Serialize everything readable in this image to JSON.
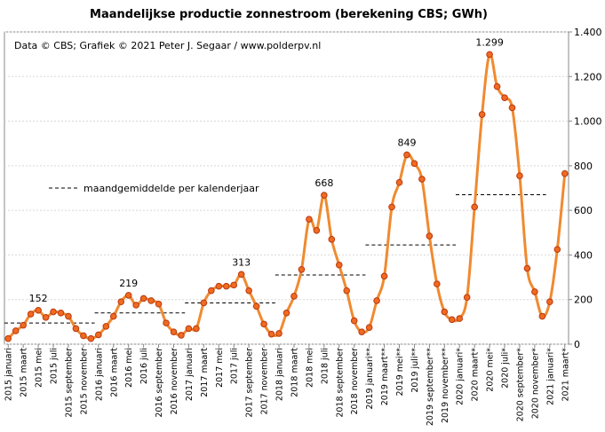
{
  "chart_data": {
    "type": "line",
    "title": "Maandelijkse productie zonnestroom (berekening CBS; GWh)",
    "annotation": "Data © CBS; Grafiek © 2021 Peter J. Segaar / www.polderpv.nl",
    "categories": [
      "2015 januari",
      null,
      "2015 maart",
      null,
      "2015 mei",
      null,
      "2015 juli",
      null,
      "2015 september",
      null,
      "2015 november",
      null,
      "2016 januari",
      null,
      "2016 maart",
      null,
      "2016 mei",
      null,
      "2016 juli",
      null,
      "2016 september",
      null,
      "2016 november",
      null,
      "2017 januari",
      null,
      "2017 maart",
      null,
      "2017 mei",
      null,
      "2017 juli",
      null,
      "2017 september",
      null,
      "2017 november",
      null,
      "2018 januari",
      null,
      "2018 maart",
      null,
      "2018 mei",
      null,
      "2018 juli",
      null,
      "2018 september",
      null,
      "2018 november",
      null,
      "2019 januari**",
      null,
      "2019 maart**",
      null,
      "2019 mei**",
      null,
      "2019 juli**",
      null,
      "2019 september**",
      null,
      "2019 november**",
      null,
      "2020 januari*",
      null,
      "2020 maart*",
      null,
      "2020 mei*",
      null,
      "2020 juli*",
      null,
      "2020 september*",
      null,
      "2020 november*",
      null,
      "2021 januari*",
      null,
      "2021 maart*"
    ],
    "series": [
      {
        "name": "Maandelijkse productie",
        "color": "#f08a30",
        "marker_color": "#f06a20",
        "values": [
          25,
          60,
          85,
          135,
          152,
          120,
          145,
          140,
          125,
          70,
          38,
          25,
          42,
          80,
          125,
          190,
          219,
          175,
          205,
          195,
          180,
          95,
          55,
          40,
          70,
          70,
          185,
          240,
          260,
          260,
          265,
          313,
          240,
          170,
          90,
          45,
          48,
          140,
          215,
          335,
          560,
          510,
          668,
          470,
          355,
          240,
          105,
          55,
          75,
          195,
          305,
          615,
          725,
          849,
          810,
          740,
          485,
          270,
          145,
          110,
          115,
          210,
          615,
          1030,
          1299,
          1155,
          1105,
          1060,
          755,
          340,
          235,
          125,
          190,
          425,
          765
        ],
        "value_labels": [
          null,
          null,
          null,
          null,
          "152",
          null,
          null,
          null,
          null,
          null,
          null,
          null,
          null,
          null,
          null,
          null,
          "219",
          null,
          null,
          null,
          null,
          null,
          null,
          null,
          null,
          null,
          null,
          null,
          null,
          null,
          null,
          "313",
          null,
          null,
          null,
          null,
          null,
          null,
          null,
          null,
          null,
          null,
          "668",
          null,
          null,
          null,
          null,
          null,
          null,
          null,
          null,
          null,
          null,
          "849",
          null,
          null,
          null,
          null,
          null,
          null,
          null,
          null,
          null,
          null,
          "1.299",
          null,
          null,
          null,
          null,
          null,
          null,
          null,
          null,
          null,
          null
        ]
      }
    ],
    "averages": {
      "name": "maandgemiddelde per kalenderjaar",
      "color": "#000000",
      "values": [
        95,
        140,
        185,
        310,
        445,
        670
      ]
    },
    "ylim": [
      0,
      1400
    ],
    "yticks": [
      0,
      200,
      400,
      600,
      800,
      {
        "value": 1000,
        "label": "1.000"
      },
      {
        "value": 1200,
        "label": "1.200"
      },
      {
        "value": 1400,
        "label": "1.400"
      }
    ],
    "grid": true
  }
}
